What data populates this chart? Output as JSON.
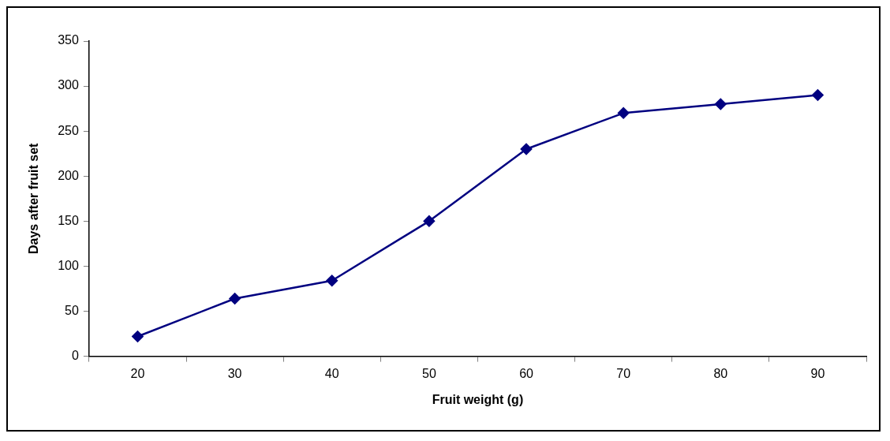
{
  "chart_data": {
    "type": "line",
    "xlabel": "Fruit weight (g)",
    "ylabel": "Days after fruit set",
    "categories": [
      "20",
      "30",
      "40",
      "50",
      "60",
      "70",
      "80",
      "90"
    ],
    "series": [
      {
        "color": "#000080",
        "values": [
          22,
          64,
          84,
          150,
          230,
          270,
          280,
          290
        ]
      }
    ],
    "ylim": [
      0,
      350
    ],
    "yticks": [
      0,
      50,
      100,
      150,
      200,
      250,
      300,
      350
    ],
    "grid": false,
    "legend": false,
    "marker": "diamond",
    "line_style": "solid"
  }
}
